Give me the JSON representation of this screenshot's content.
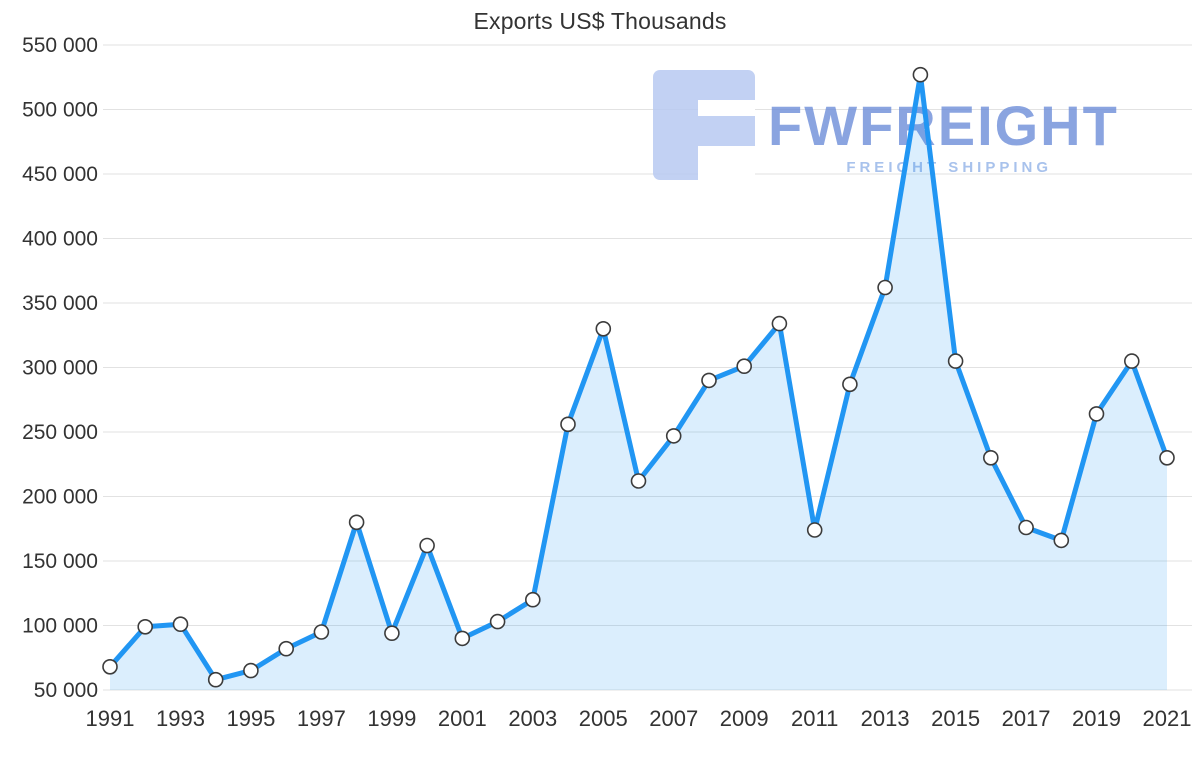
{
  "chart_data": {
    "type": "area",
    "title": "Exports US$ Thousands",
    "x": [
      1991,
      1992,
      1993,
      1994,
      1995,
      1996,
      1997,
      1998,
      1999,
      2000,
      2001,
      2002,
      2003,
      2004,
      2005,
      2006,
      2007,
      2008,
      2009,
      2010,
      2011,
      2012,
      2013,
      2014,
      2015,
      2016,
      2017,
      2018,
      2019,
      2020,
      2021
    ],
    "values": [
      68000,
      99000,
      101000,
      58000,
      65000,
      82000,
      95000,
      180000,
      94000,
      162000,
      90000,
      103000,
      120000,
      256000,
      330000,
      212000,
      247000,
      290000,
      301000,
      334000,
      174000,
      287000,
      362000,
      527000,
      305000,
      230000,
      176000,
      166000,
      264000,
      305000,
      230000
    ],
    "ylim": [
      50000,
      550000
    ],
    "ytick_step": 50000,
    "xtick_step": 2,
    "grid": true,
    "legend": "none",
    "xlabel": "",
    "ylabel": "",
    "line_color": "#2196f3",
    "fill_color": "rgba(33, 150, 243, 0.16)",
    "grid_color": "#e2e2e2",
    "marker_fill": "#ffffff",
    "marker_stroke": "#3c3c3c"
  },
  "watermark": {
    "brand": "FWFREIGHT",
    "tagline": "FREIGHT SHIPPING",
    "logo_color": "#b7c9f1"
  }
}
